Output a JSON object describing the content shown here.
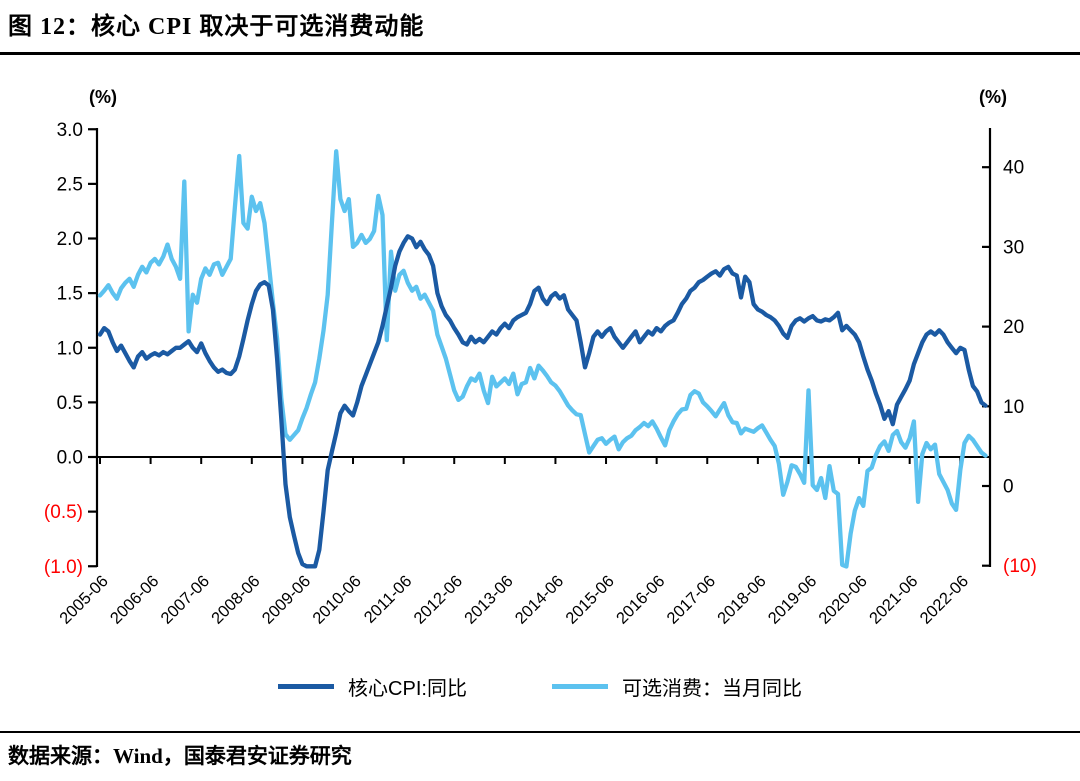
{
  "title": "图 12：核心 CPI 取决于可选消费动能",
  "source": "数据来源：Wind，国泰君安证券研究",
  "colors": {
    "core_cpi_line": "#1B5AA3",
    "optional_consumption_line": "#5CC2EF",
    "negative_tick": "#FF0000",
    "axis": "#000000"
  },
  "chart_data": {
    "type": "line",
    "title": "图 12：核心 CPI 取决于可选消费动能",
    "grid": false,
    "legend_position": "bottom",
    "x_frequency": "monthly",
    "x_first": "2005-06",
    "x_last": "2022-12",
    "x_tick_labels": [
      "2005-06",
      "2006-06",
      "2007-06",
      "2008-06",
      "2009-06",
      "2010-06",
      "2011-06",
      "2012-06",
      "2013-06",
      "2014-06",
      "2015-06",
      "2016-06",
      "2017-06",
      "2018-06",
      "2019-06",
      "2020-06",
      "2021-06",
      "2022-06"
    ],
    "left_axis": {
      "unit": "(%)",
      "range": [
        -1.0,
        3.0
      ],
      "tick_labels": [
        "3.0",
        "2.5",
        "2.0",
        "1.5",
        "1.0",
        "0.5",
        "0.0",
        "(0.5)",
        "(1.0)"
      ],
      "tick_values": [
        3.0,
        2.5,
        2.0,
        1.5,
        1.0,
        0.5,
        0.0,
        -0.5,
        -1.0
      ]
    },
    "right_axis": {
      "unit": "(%)",
      "range": [
        -10,
        45
      ],
      "tick_labels": [
        "40",
        "30",
        "20",
        "10",
        "0",
        "(10)"
      ],
      "tick_values": [
        40,
        30,
        20,
        10,
        0,
        -10
      ]
    },
    "series": [
      {
        "name": "核心CPI:同比",
        "axis": "left",
        "color": "#1B5AA3",
        "values": [
          1.12,
          1.18,
          1.15,
          1.05,
          0.97,
          1.02,
          0.95,
          0.88,
          0.82,
          0.92,
          0.96,
          0.9,
          0.93,
          0.95,
          0.93,
          0.96,
          0.94,
          0.97,
          1.0,
          1.0,
          1.03,
          1.06,
          1.0,
          0.96,
          1.04,
          0.95,
          0.88,
          0.82,
          0.78,
          0.8,
          0.77,
          0.76,
          0.8,
          0.92,
          1.08,
          1.25,
          1.4,
          1.52,
          1.58,
          1.6,
          1.57,
          1.35,
          0.9,
          0.35,
          -0.25,
          -0.55,
          -0.72,
          -0.88,
          -0.98,
          -1.0,
          -1.0,
          -1.0,
          -0.85,
          -0.5,
          -0.12,
          0.05,
          0.22,
          0.4,
          0.47,
          0.42,
          0.38,
          0.5,
          0.65,
          0.75,
          0.85,
          0.95,
          1.05,
          1.2,
          1.38,
          1.55,
          1.75,
          1.88,
          1.96,
          2.02,
          2.0,
          1.92,
          1.97,
          1.9,
          1.85,
          1.75,
          1.5,
          1.38,
          1.3,
          1.25,
          1.18,
          1.12,
          1.05,
          1.03,
          1.1,
          1.05,
          1.08,
          1.05,
          1.1,
          1.15,
          1.12,
          1.18,
          1.22,
          1.18,
          1.25,
          1.28,
          1.3,
          1.32,
          1.4,
          1.52,
          1.55,
          1.45,
          1.4,
          1.47,
          1.5,
          1.45,
          1.48,
          1.35,
          1.3,
          1.25,
          1.05,
          0.82,
          0.95,
          1.1,
          1.15,
          1.1,
          1.15,
          1.18,
          1.1,
          1.05,
          1.0,
          1.05,
          1.1,
          1.15,
          1.05,
          1.1,
          1.15,
          1.12,
          1.18,
          1.15,
          1.2,
          1.23,
          1.25,
          1.32,
          1.4,
          1.45,
          1.52,
          1.55,
          1.6,
          1.62,
          1.65,
          1.68,
          1.7,
          1.66,
          1.72,
          1.74,
          1.68,
          1.66,
          1.46,
          1.65,
          1.6,
          1.4,
          1.35,
          1.33,
          1.3,
          1.28,
          1.25,
          1.2,
          1.13,
          1.09,
          1.2,
          1.25,
          1.27,
          1.24,
          1.27,
          1.29,
          1.25,
          1.24,
          1.26,
          1.25,
          1.28,
          1.32,
          1.16,
          1.2,
          1.16,
          1.12,
          1.05,
          0.92,
          0.8,
          0.7,
          0.58,
          0.48,
          0.35,
          0.42,
          0.3,
          0.48,
          0.55,
          0.62,
          0.7,
          0.85,
          0.95,
          1.05,
          1.12,
          1.15,
          1.12,
          1.16,
          1.12,
          1.05,
          1.0,
          0.95,
          1.0,
          0.98,
          0.8,
          0.65,
          0.6,
          0.5,
          0.47
        ]
      },
      {
        "name": "可选消费：当月同比",
        "axis": "right",
        "color": "#5CC2EF",
        "values": [
          23.9,
          24.5,
          25.2,
          24.2,
          23.5,
          24.8,
          25.5,
          26.0,
          25.0,
          26.5,
          27.5,
          26.8,
          28.0,
          28.5,
          27.8,
          28.8,
          30.3,
          28.5,
          27.5,
          26.0,
          38.2,
          19.4,
          24.0,
          23.0,
          26.0,
          27.3,
          26.5,
          27.8,
          28.0,
          26.5,
          27.5,
          28.5,
          35.0,
          41.4,
          33.0,
          32.3,
          36.3,
          34.5,
          35.5,
          33.0,
          28.0,
          23.0,
          18.5,
          11.0,
          6.5,
          5.8,
          6.4,
          7.0,
          8.5,
          9.8,
          11.5,
          13.0,
          16.0,
          19.5,
          24.0,
          33.0,
          42.0,
          36.0,
          34.5,
          36.0,
          30.0,
          30.5,
          31.5,
          30.5,
          31.0,
          32.0,
          36.4,
          34.0,
          18.3,
          29.4,
          24.5,
          26.5,
          27.0,
          25.5,
          24.5,
          25.0,
          23.5,
          24.0,
          23.0,
          22.0,
          19.0,
          17.5,
          16.0,
          14.0,
          12.0,
          10.8,
          11.2,
          12.5,
          13.5,
          13.2,
          14.1,
          12.0,
          10.4,
          13.7,
          12.5,
          13.0,
          13.5,
          12.8,
          14.1,
          11.5,
          12.8,
          13.0,
          14.8,
          13.5,
          15.1,
          14.5,
          13.8,
          13.0,
          12.6,
          11.9,
          11.0,
          10.1,
          9.5,
          9.0,
          8.9,
          6.5,
          4.2,
          5.0,
          5.8,
          6.0,
          5.3,
          5.8,
          6.2,
          4.6,
          5.5,
          6.0,
          6.3,
          7.0,
          7.4,
          7.9,
          7.5,
          8.1,
          7.2,
          6.1,
          5.1,
          7.0,
          8.1,
          9.0,
          9.6,
          9.7,
          11.4,
          11.9,
          11.6,
          10.5,
          10.0,
          9.4,
          8.75,
          9.6,
          10.4,
          8.9,
          8.0,
          7.9,
          6.6,
          7.2,
          7.0,
          6.8,
          7.25,
          7.6,
          6.7,
          5.8,
          5.0,
          2.8,
          -1.1,
          0.5,
          2.6,
          2.4,
          1.5,
          0.4,
          12.0,
          0.1,
          -0.5,
          1.0,
          -1.5,
          2.5,
          -0.6,
          -1.0,
          -9.9,
          -10.3,
          -6.0,
          -3.1,
          -1.5,
          -2.5,
          1.9,
          2.3,
          3.9,
          5.0,
          5.6,
          4.4,
          6.4,
          6.9,
          5.5,
          4.8,
          6.0,
          8.1,
          -2.0,
          4.0,
          5.4,
          4.6,
          5.2,
          1.5,
          0.5,
          -0.5,
          -2.2,
          -3.0,
          2.0,
          5.4,
          6.3,
          5.8,
          5.0,
          4.2,
          3.8
        ]
      }
    ]
  }
}
